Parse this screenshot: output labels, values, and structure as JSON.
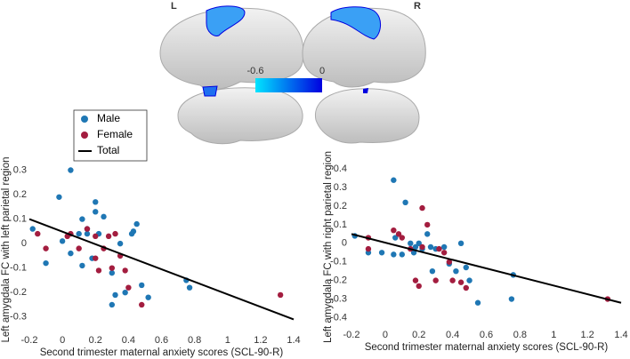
{
  "brain": {
    "labels": [
      "L",
      "R"
    ]
  },
  "colorbar": {
    "ticks": [
      -0.6,
      0
    ],
    "colors": [
      "#00e5ff",
      "#0000e0"
    ]
  },
  "chart_data": [
    {
      "type": "scatter",
      "xlabel": "Second trimester maternal anxiety scores (SCL-90-R)",
      "ylabel": "Left amygdala FC with left parietal region",
      "xlim": [
        -0.2,
        1.4
      ],
      "xticks": [
        -0.2,
        0,
        0.2,
        0.4,
        0.6,
        0.8,
        1,
        1.2,
        1.4
      ],
      "ylim": [
        -0.37,
        0.32
      ],
      "yticks": [
        -0.3,
        -0.2,
        -0.1,
        0,
        0.1,
        0.2,
        0.3
      ],
      "series": [
        {
          "name": "Male",
          "color": "#1f77b4",
          "x": [
            -0.18,
            -0.1,
            -0.02,
            0.05,
            0.05,
            0.1,
            0.12,
            0.15,
            0.15,
            0.18,
            0.2,
            0.2,
            0.22,
            0.25,
            0.3,
            0.3,
            0.32,
            0.35,
            0.38,
            0.42,
            0.43,
            0.45,
            0.48,
            0.52,
            0.75,
            0.77,
            0.12,
            0
          ],
          "values": [
            0.06,
            -0.08,
            0.19,
            0.3,
            -0.04,
            0.04,
            0.1,
            0.06,
            0.04,
            -0.06,
            0.17,
            0.13,
            0.04,
            0.11,
            -0.12,
            -0.25,
            -0.21,
            0,
            -0.2,
            0.04,
            0.05,
            0.08,
            -0.17,
            -0.22,
            -0.15,
            -0.18,
            -0.09,
            0.01
          ]
        },
        {
          "name": "Female",
          "color": "#a31d3f",
          "x": [
            -0.15,
            -0.1,
            0.03,
            0.05,
            0.1,
            0.15,
            0.2,
            0.2,
            0.22,
            0.25,
            0.28,
            0.3,
            0.32,
            0.35,
            0.38,
            0.4,
            0.48,
            1.32
          ],
          "values": [
            0.04,
            -0.02,
            0.03,
            0.04,
            -0.02,
            0.06,
            0.03,
            -0.06,
            -0.11,
            -0.02,
            0.03,
            -0.1,
            0.04,
            -0.05,
            -0.11,
            -0.18,
            -0.25,
            -0.21
          ]
        },
        {
          "name": "Total",
          "color": "#000000",
          "type": "line",
          "x": [
            -0.2,
            1.4
          ],
          "values": [
            0.1,
            -0.31
          ]
        }
      ]
    },
    {
      "type": "scatter",
      "xlabel": "Second trimester maternal anxiety scores (SCL-90-R)",
      "ylabel": "Left amygdala FC with right parietal region",
      "xlim": [
        -0.2,
        1.4
      ],
      "xticks": [
        -0.2,
        0,
        0.2,
        0.4,
        0.6,
        0.8,
        1,
        1.2,
        1.4
      ],
      "ylim": [
        -0.46,
        0.42
      ],
      "yticks": [
        -0.4,
        -0.3,
        -0.2,
        -0.1,
        0,
        0.1,
        0.2,
        0.3,
        0.4
      ],
      "series": [
        {
          "name": "Male",
          "color": "#1f77b4",
          "x": [
            -0.18,
            -0.1,
            -0.02,
            0.05,
            0.06,
            0.1,
            0.12,
            0.15,
            0.17,
            0.18,
            0.2,
            0.22,
            0.25,
            0.27,
            0.28,
            0.3,
            0.35,
            0.38,
            0.42,
            0.45,
            0.48,
            0.5,
            0.55,
            0.75,
            0.76,
            0.05
          ],
          "values": [
            0.04,
            -0.05,
            -0.05,
            0.34,
            0.03,
            -0.06,
            0.22,
            0,
            -0.05,
            -0.02,
            0,
            -0.03,
            0.05,
            -0.02,
            -0.15,
            -0.03,
            -0.02,
            -0.11,
            -0.15,
            0,
            -0.13,
            -0.2,
            -0.32,
            -0.3,
            -0.17,
            -0.06
          ]
        },
        {
          "name": "Female",
          "color": "#a31d3f",
          "x": [
            -0.1,
            -0.1,
            0.05,
            0.08,
            0.1,
            0.15,
            0.18,
            0.2,
            0.22,
            0.22,
            0.25,
            0.3,
            0.32,
            0.35,
            0.38,
            0.4,
            0.45,
            0.48,
            1.32
          ],
          "values": [
            0.03,
            -0.03,
            0.07,
            0.05,
            0.03,
            -0.03,
            -0.2,
            -0.23,
            -0.02,
            0.19,
            0.1,
            -0.2,
            -0.03,
            -0.05,
            -0.1,
            -0.2,
            -0.21,
            -0.24,
            -0.3
          ]
        },
        {
          "name": "Total",
          "color": "#000000",
          "type": "line",
          "x": [
            -0.2,
            1.4
          ],
          "values": [
            0.05,
            -0.32
          ]
        }
      ]
    }
  ]
}
